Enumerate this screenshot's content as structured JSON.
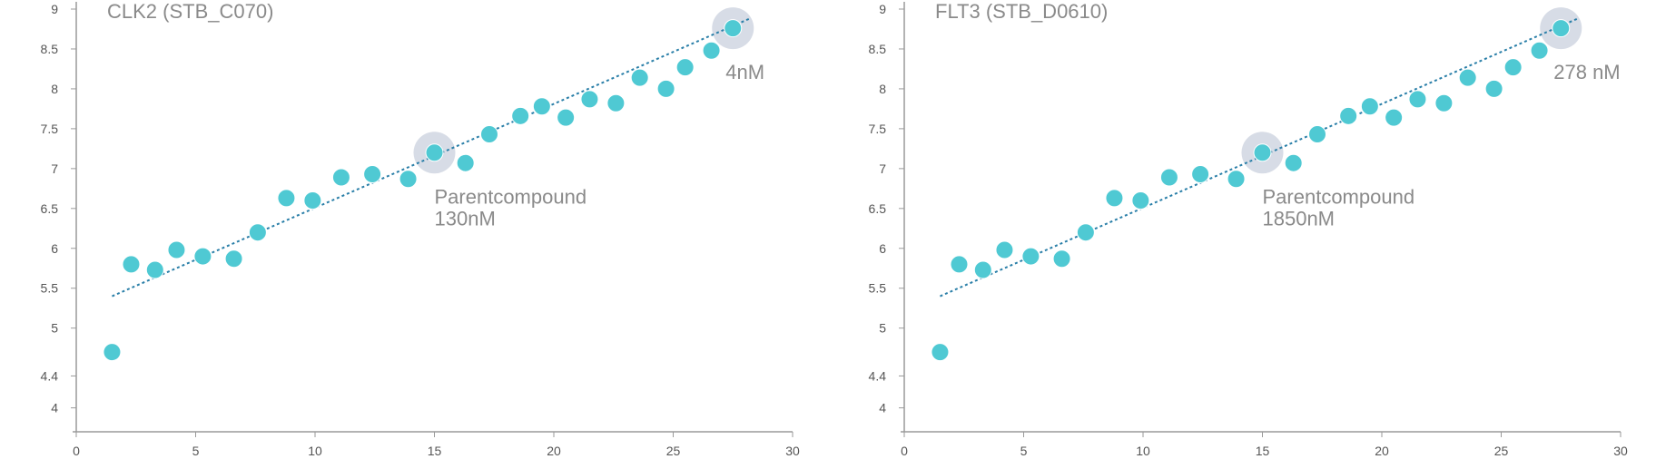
{
  "chart_data": [
    {
      "type": "scatter",
      "title": "CLK2 (STB_C070)",
      "xlabel": "",
      "ylabel": "",
      "xlim": [
        0,
        30
      ],
      "ylim": [
        3.7,
        9
      ],
      "x_ticks": [
        0,
        5,
        10,
        15,
        20,
        25,
        30
      ],
      "y_ticks": [
        4,
        4.4,
        5,
        5.5,
        6,
        6.5,
        7,
        7.5,
        8,
        8.5,
        9
      ],
      "grid": false,
      "colors": {
        "point": "#4fc9d3",
        "trend": "#2a7fa8",
        "highlight": "#d3d8e3",
        "axis": "#9a9a9a",
        "text": "#8a8a8a"
      },
      "points": [
        {
          "x": 1.5,
          "y": 4.7
        },
        {
          "x": 2.3,
          "y": 5.8
        },
        {
          "x": 3.3,
          "y": 5.73
        },
        {
          "x": 4.2,
          "y": 5.98
        },
        {
          "x": 5.3,
          "y": 5.9
        },
        {
          "x": 6.6,
          "y": 5.87
        },
        {
          "x": 7.6,
          "y": 6.2
        },
        {
          "x": 8.8,
          "y": 6.63
        },
        {
          "x": 9.9,
          "y": 6.6
        },
        {
          "x": 11.1,
          "y": 6.89
        },
        {
          "x": 12.4,
          "y": 6.93
        },
        {
          "x": 13.9,
          "y": 6.87
        },
        {
          "x": 15.0,
          "y": 7.2
        },
        {
          "x": 16.3,
          "y": 7.07
        },
        {
          "x": 17.3,
          "y": 7.43
        },
        {
          "x": 18.6,
          "y": 7.66
        },
        {
          "x": 19.5,
          "y": 7.78
        },
        {
          "x": 20.5,
          "y": 7.64
        },
        {
          "x": 21.5,
          "y": 7.87
        },
        {
          "x": 22.6,
          "y": 7.82
        },
        {
          "x": 23.6,
          "y": 8.14
        },
        {
          "x": 24.7,
          "y": 8.0
        },
        {
          "x": 25.5,
          "y": 8.27
        },
        {
          "x": 26.6,
          "y": 8.48
        },
        {
          "x": 27.5,
          "y": 8.76
        }
      ],
      "trendline": {
        "x": [
          1.5,
          28.2
        ],
        "y": [
          5.4,
          8.88
        ]
      },
      "highlights": [
        {
          "x": 15.0,
          "y": 7.2,
          "lines": [
            "Parentcompound",
            "130nM"
          ],
          "anchor": "below"
        },
        {
          "x": 27.5,
          "y": 8.76,
          "lines": [
            "4nM"
          ],
          "anchor": "below"
        }
      ]
    },
    {
      "type": "scatter",
      "title": "FLT3 (STB_D0610)",
      "xlabel": "",
      "ylabel": "",
      "xlim": [
        0,
        30
      ],
      "ylim": [
        3.7,
        9
      ],
      "x_ticks": [
        0,
        5,
        10,
        15,
        20,
        25,
        30
      ],
      "y_ticks": [
        4,
        4.4,
        5,
        5.5,
        6,
        6.5,
        7,
        7.5,
        8,
        8.5,
        9
      ],
      "grid": false,
      "colors": {
        "point": "#4fc9d3",
        "trend": "#2a7fa8",
        "highlight": "#d3d8e3",
        "axis": "#9a9a9a",
        "text": "#8a8a8a"
      },
      "points": [
        {
          "x": 1.5,
          "y": 4.7
        },
        {
          "x": 2.3,
          "y": 5.8
        },
        {
          "x": 3.3,
          "y": 5.73
        },
        {
          "x": 4.2,
          "y": 5.98
        },
        {
          "x": 5.3,
          "y": 5.9
        },
        {
          "x": 6.6,
          "y": 5.87
        },
        {
          "x": 7.6,
          "y": 6.2
        },
        {
          "x": 8.8,
          "y": 6.63
        },
        {
          "x": 9.9,
          "y": 6.6
        },
        {
          "x": 11.1,
          "y": 6.89
        },
        {
          "x": 12.4,
          "y": 6.93
        },
        {
          "x": 13.9,
          "y": 6.87
        },
        {
          "x": 15.0,
          "y": 7.2
        },
        {
          "x": 16.3,
          "y": 7.07
        },
        {
          "x": 17.3,
          "y": 7.43
        },
        {
          "x": 18.6,
          "y": 7.66
        },
        {
          "x": 19.5,
          "y": 7.78
        },
        {
          "x": 20.5,
          "y": 7.64
        },
        {
          "x": 21.5,
          "y": 7.87
        },
        {
          "x": 22.6,
          "y": 7.82
        },
        {
          "x": 23.6,
          "y": 8.14
        },
        {
          "x": 24.7,
          "y": 8.0
        },
        {
          "x": 25.5,
          "y": 8.27
        },
        {
          "x": 26.6,
          "y": 8.48
        },
        {
          "x": 27.5,
          "y": 8.76
        }
      ],
      "trendline": {
        "x": [
          1.5,
          28.2
        ],
        "y": [
          5.4,
          8.88
        ]
      },
      "highlights": [
        {
          "x": 15.0,
          "y": 7.2,
          "lines": [
            "Parentcompound",
            "1850nM"
          ],
          "anchor": "below"
        },
        {
          "x": 27.5,
          "y": 8.76,
          "lines": [
            "278 nM"
          ],
          "anchor": "below"
        }
      ]
    }
  ]
}
